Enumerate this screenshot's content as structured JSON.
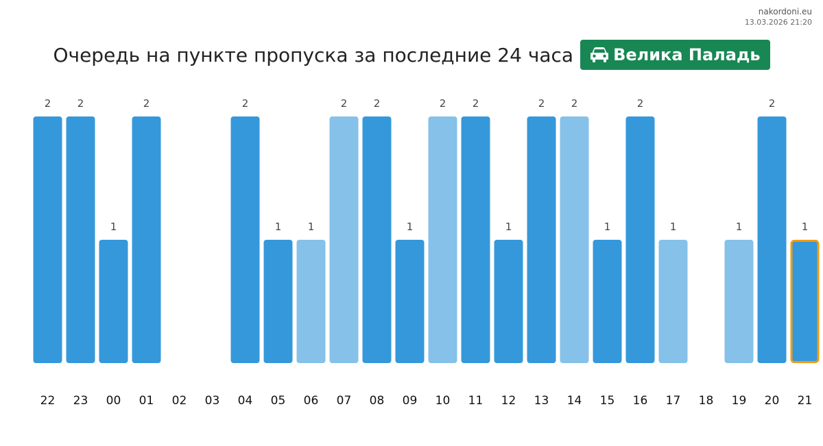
{
  "header": {
    "site": "nakordoni.eu",
    "timestamp": "13.03.2026 21:20",
    "title": "Очередь на пункте пропуска за последние 24 часа",
    "checkpoint": "Велика Паладь",
    "checkpoint_icon": "car-icon",
    "badge_color": "#198754"
  },
  "colors": {
    "bar_dark": "#3598db",
    "bar_light": "#85c1e9",
    "highlight_border": "#f39c12"
  },
  "chart_data": {
    "type": "bar",
    "categories": [
      "22",
      "23",
      "00",
      "01",
      "02",
      "03",
      "04",
      "05",
      "06",
      "07",
      "08",
      "09",
      "10",
      "11",
      "12",
      "13",
      "14",
      "15",
      "16",
      "17",
      "18",
      "19",
      "20",
      "21"
    ],
    "values": [
      2,
      2,
      1,
      2,
      0,
      0,
      2,
      1,
      1,
      2,
      2,
      1,
      2,
      2,
      1,
      2,
      2,
      1,
      2,
      1,
      0,
      1,
      2,
      1
    ],
    "shade": [
      "dark",
      "dark",
      "dark",
      "dark",
      "dark",
      "dark",
      "dark",
      "dark",
      "light",
      "light",
      "dark",
      "dark",
      "light",
      "dark",
      "dark",
      "dark",
      "light",
      "dark",
      "dark",
      "light",
      "dark",
      "light",
      "dark",
      "dark"
    ],
    "highlighted_category": "21",
    "ylim": [
      0,
      2
    ],
    "grid": false,
    "title": "",
    "xlabel": "",
    "ylabel": ""
  }
}
